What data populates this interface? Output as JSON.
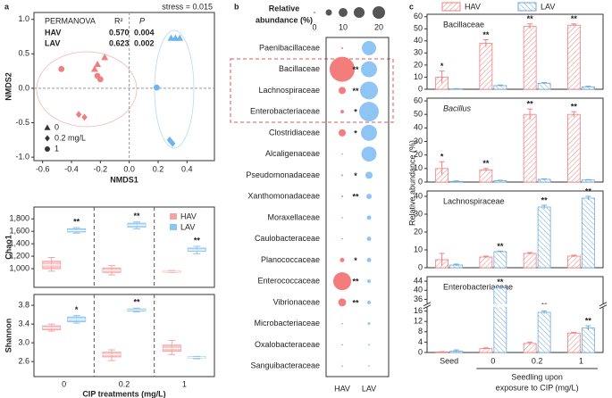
{
  "chart_data": [
    {
      "type": "scatter",
      "label": "a",
      "xlabel": "NMDS1",
      "ylabel": "NMDS2",
      "annotation": "stress = 0.015",
      "xlim": [
        -0.66,
        0.59
      ],
      "xticks": [
        -0.6,
        -0.4,
        -0.2,
        {
          "value": 0,
          "label": "0.0"
        },
        0.2,
        0.4
      ],
      "ylim": [
        -1.05,
        1.1
      ],
      "yticks": [
        {
          "value": -1,
          "label": "-1.0"
        },
        -0.5,
        {
          "value": 0,
          "label": "0.0"
        },
        0.5,
        {
          "value": 1,
          "label": "1.0"
        }
      ],
      "table": {
        "header": [
          "PERMANOVA",
          "R²",
          "P"
        ],
        "rows": [
          [
            "HAV",
            "0.570",
            "0.004"
          ],
          [
            "LAV",
            "0.623",
            "0.002"
          ]
        ]
      },
      "marker_legend": [
        {
          "label": "0",
          "marker": "triangle"
        },
        {
          "label": "0.2 mg/L",
          "marker": "diamond"
        },
        {
          "label": "1",
          "marker": "circle"
        }
      ],
      "series": [
        {
          "color": "#f08080",
          "x": [
            -0.22,
            -0.17,
            -0.24,
            -0.35,
            -0.31,
            -0.47,
            -0.2,
            -0.22
          ],
          "y": [
            0.35,
            0.45,
            0.28,
            -0.38,
            -0.42,
            0.28,
            0.13,
            0.18
          ],
          "markers": [
            "triangle",
            "triangle",
            "triangle",
            "diamond",
            "diamond",
            "circle",
            "circle",
            "circle"
          ]
        },
        {
          "color": "#6cb4ee",
          "x": [
            0.29,
            0.32,
            0.35,
            0.19,
            0.28,
            0.3
          ],
          "y": [
            0.73,
            0.73,
            0.73,
            0.01,
            -0.75,
            -0.8
          ],
          "markers": [
            "triangle",
            "triangle",
            "triangle",
            "circle",
            "diamond",
            "diamond"
          ]
        }
      ]
    },
    {
      "type": "box",
      "ylabel": "Chao1",
      "ylim": [
        700,
        1990
      ],
      "yticks": [
        {
          "value": 1000,
          "label": "1,000"
        },
        {
          "value": 1200,
          "label": "1,200"
        },
        {
          "value": 1400,
          "label": "1,400"
        },
        {
          "value": 1600,
          "label": "1,600"
        },
        {
          "value": 1800,
          "label": "1,800"
        }
      ],
      "series": [
        {
          "name": "HAV",
          "color": "#f4a6a6",
          "boxes": [
            {
              "min": 960,
              "q1": 1000,
              "median": 1060,
              "q3": 1120,
              "max": 1180
            },
            {
              "min": 900,
              "q1": 940,
              "median": 970,
              "q3": 1010,
              "max": 1050
            },
            {
              "min": 940,
              "q1": 950,
              "median": 955,
              "q3": 960,
              "max": 970
            }
          ]
        },
        {
          "name": "LAV",
          "color": "#8ec5f5",
          "boxes": [
            {
              "min": 1570,
              "q1": 1590,
              "median": 1610,
              "q3": 1640,
              "max": 1660
            },
            {
              "min": 1640,
              "q1": 1670,
              "median": 1700,
              "q3": 1730,
              "max": 1750
            },
            {
              "min": 1240,
              "q1": 1280,
              "median": 1300,
              "q3": 1330,
              "max": 1360
            }
          ]
        }
      ],
      "significance": [
        "**",
        "**",
        "**"
      ]
    },
    {
      "type": "box",
      "ylabel": "Shannon",
      "xlabel": "CIP treatments (mg/L)",
      "categories": [
        "0",
        "0.2",
        "1"
      ],
      "ylim": [
        2.28,
        4.03
      ],
      "yticks": [
        2.6,
        {
          "value": 3,
          "label": "3.0"
        },
        3.4,
        3.8
      ],
      "series": [
        {
          "color": "#f4a6a6",
          "boxes": [
            {
              "min": 3.25,
              "q1": 3.28,
              "median": 3.32,
              "q3": 3.36,
              "max": 3.4
            },
            {
              "min": 2.62,
              "q1": 2.7,
              "median": 2.75,
              "q3": 2.8,
              "max": 2.85
            },
            {
              "min": 2.75,
              "q1": 2.82,
              "median": 2.88,
              "q3": 2.95,
              "max": 3.05
            }
          ]
        },
        {
          "color": "#8ec5f5",
          "boxes": [
            {
              "min": 3.42,
              "q1": 3.45,
              "median": 3.5,
              "q3": 3.55,
              "max": 3.58
            },
            {
              "min": 3.66,
              "q1": 3.68,
              "median": 3.7,
              "q3": 3.72,
              "max": 3.74
            },
            {
              "min": 2.66,
              "q1": 2.68,
              "median": 2.69,
              "q3": 2.7,
              "max": 2.71
            }
          ]
        }
      ],
      "significance": [
        "*",
        "**",
        null
      ]
    },
    {
      "type": "bubble",
      "label": "b",
      "size_title": [
        "Relative",
        "abundance (%)"
      ],
      "size_legend": [
        0,
        5,
        10,
        15,
        20
      ],
      "size_ticks": [
        0,
        10,
        20
      ],
      "categories": [
        "Paenibacillaceae",
        "Bacillaceae",
        "Lachnospiraceae",
        "Enterobacteriaceae",
        "Clostridiaceae",
        "Alcaligenaceae",
        "Pseudomonadaceae",
        "Xanthomonadaceae",
        "Moraxellaceae",
        "Caulobacteraceae",
        "Planococcaceae",
        "Enterococcaceae",
        "Vibrionaceae",
        "Microbacteriaceae",
        "Oxalobacteraceae",
        "Sanguibacteraceae"
      ],
      "series": [
        {
          "name": "HAV",
          "color": "#f47c7c",
          "values": [
            0.4,
            80,
            6.5,
            1.6,
            6.5,
            0.1,
            0.4,
            0.4,
            0.1,
            0.1,
            2.5,
            41,
            8,
            0.1,
            0.1,
            0.1
          ]
        },
        {
          "name": "LAV",
          "color": "#8ec5f5",
          "values": [
            26,
            33,
            41,
            49,
            33,
            29,
            6.5,
            3.7,
            2.5,
            2.5,
            2.5,
            1.6,
            1.6,
            0.9,
            0.4,
            0.3
          ]
        }
      ],
      "significance": [
        null,
        "**",
        "**",
        "*",
        "*",
        null,
        "*",
        "**",
        null,
        null,
        "*",
        "**",
        "**",
        null,
        null,
        null
      ]
    },
    {
      "type": "bar",
      "label": "c",
      "title": "Bacillaceae",
      "ylabel": "Relative abundance (%)",
      "ylim": [
        0,
        62
      ],
      "yticks": [
        0,
        10,
        20,
        30,
        40,
        50,
        60
      ],
      "series": [
        {
          "name": "HAV",
          "color": "#f08080",
          "values": [
            10,
            38,
            52,
            53
          ],
          "errors": [
            5,
            3,
            2,
            1
          ],
          "significance": [
            "*",
            "**",
            "**",
            "**"
          ]
        },
        {
          "name": "LAV",
          "color": "#6fa8dc",
          "values": [
            0.3,
            3,
            5,
            2
          ],
          "errors": [
            0.2,
            0.5,
            0.5,
            0.5
          ]
        }
      ]
    },
    {
      "type": "bar",
      "title": "Bacillus",
      "title_italic": true,
      "ylim": [
        0,
        62
      ],
      "yticks": [
        0,
        10,
        20,
        30,
        40,
        50,
        60
      ],
      "series": [
        {
          "color": "#f08080",
          "values": [
            10,
            9,
            50,
            50
          ],
          "errors": [
            5,
            1,
            4,
            2
          ],
          "significance": [
            "*",
            "**",
            "**",
            "**"
          ]
        },
        {
          "color": "#6fa8dc",
          "values": [
            0.5,
            1,
            2,
            1.5
          ],
          "errors": [
            0.3,
            0.3,
            0.3,
            0.3
          ]
        }
      ]
    },
    {
      "type": "bar",
      "title": "Lachnospiraceae",
      "ylim": [
        0,
        43
      ],
      "yticks": [
        0,
        10,
        20,
        30,
        40
      ],
      "series": [
        {
          "color": "#f08080",
          "values": [
            4.5,
            6,
            8,
            6.5
          ],
          "errors": [
            3.5,
            0.5,
            0.5,
            0.5
          ]
        },
        {
          "color": "#6fa8dc",
          "values": [
            1.5,
            9,
            34,
            39
          ],
          "errors": [
            0.5,
            0.3,
            1,
            1
          ],
          "significance": [
            null,
            "**",
            "**",
            "**"
          ]
        }
      ]
    },
    {
      "type": "bar",
      "title": "Enterobacteriaceae",
      "categories": [
        "Seed",
        "0",
        "0.2",
        "1"
      ],
      "xlabel": [
        "Seedling upon",
        "exposure to CIP (mg/L)"
      ],
      "ylim": [
        0,
        46
      ],
      "ybreak": [
        17,
        34
      ],
      "yticks": [
        0,
        4,
        8,
        12,
        16,
        36,
        40,
        44
      ],
      "series": [
        {
          "color": "#f08080",
          "values": [
            0.2,
            1.5,
            3.5,
            7.5
          ],
          "errors": [
            0.1,
            0.3,
            0.5,
            0.3
          ]
        },
        {
          "color": "#6fa8dc",
          "values": [
            0.5,
            41,
            15.5,
            9.5
          ],
          "errors": [
            0.5,
            0.5,
            0.5,
            0.8
          ],
          "significance": [
            null,
            "**",
            "**",
            "**"
          ]
        }
      ]
    }
  ]
}
